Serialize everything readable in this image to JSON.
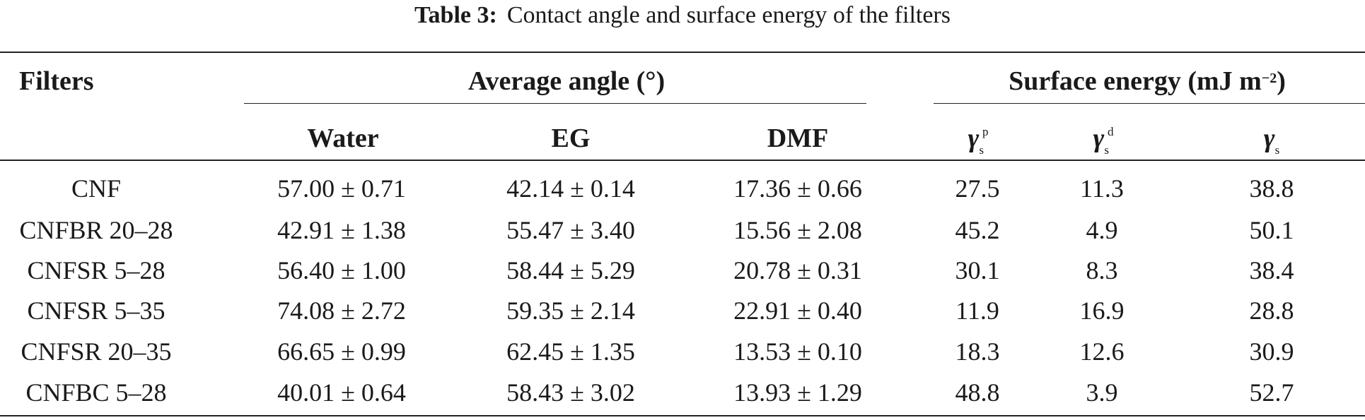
{
  "caption": {
    "label": "Table 3:",
    "text": "Contact angle and surface energy of the filters"
  },
  "header": {
    "filters": "Filters",
    "average_angle": "Average angle (°)",
    "surface_energy": "Surface energy (mJ m",
    "surface_energy_exp": "−2",
    "surface_energy_close": ")",
    "water": "Water",
    "eg": "EG",
    "dmf": "DMF",
    "gamma_symbol": "γ",
    "gamma_sub": "s",
    "gamma_p_sup": "p",
    "gamma_d_sup": "d"
  },
  "rows": [
    {
      "filter": "CNF",
      "water": "57.00 ± 0.71",
      "eg": "42.14 ± 0.14",
      "dmf": "17.36 ± 0.66",
      "gp": "27.5",
      "gd": "11.3",
      "gs": "38.8"
    },
    {
      "filter": "CNFBR 20–28",
      "water": "42.91 ± 1.38",
      "eg": "55.47 ± 3.40",
      "dmf": "15.56 ± 2.08",
      "gp": "45.2",
      "gd": "4.9",
      "gs": "50.1"
    },
    {
      "filter": "CNFSR 5–28",
      "water": "56.40 ± 1.00",
      "eg": "58.44 ± 5.29",
      "dmf": "20.78 ± 0.31",
      "gp": "30.1",
      "gd": "8.3",
      "gs": "38.4"
    },
    {
      "filter": "CNFSR 5–35",
      "water": "74.08 ± 2.72",
      "eg": "59.35 ± 2.14",
      "dmf": "22.91 ± 0.40",
      "gp": "11.9",
      "gd": "16.9",
      "gs": "28.8"
    },
    {
      "filter": "CNFSR 20–35",
      "water": "66.65 ± 0.99",
      "eg": "62.45 ± 1.35",
      "dmf": "13.53 ± 0.10",
      "gp": "18.3",
      "gd": "12.6",
      "gs": "30.9"
    },
    {
      "filter": "CNFBC 5–28",
      "water": "40.01 ± 0.64",
      "eg": "58.43 ± 3.02",
      "dmf": "13.93 ± 1.29",
      "gp": "48.8",
      "gd": "3.9",
      "gs": "52.7"
    }
  ]
}
